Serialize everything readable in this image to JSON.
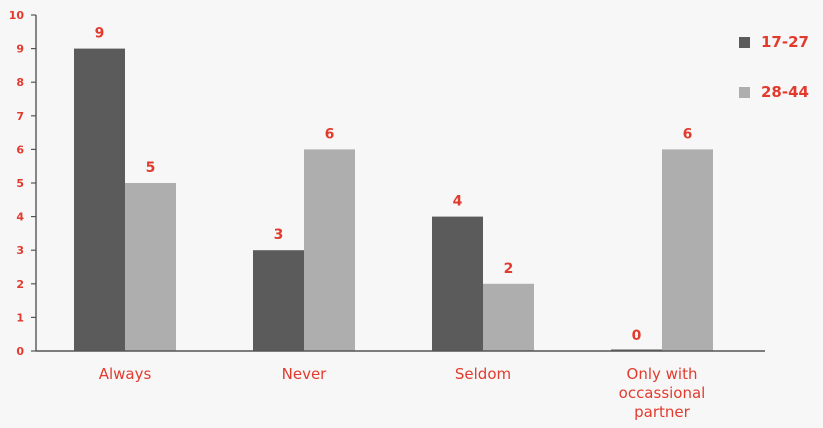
{
  "chart_data": {
    "type": "bar",
    "categories": [
      [
        "Always"
      ],
      [
        "Never"
      ],
      [
        "Seldom"
      ],
      [
        "Only with",
        "occassional",
        "partner"
      ]
    ],
    "series": [
      {
        "name": "17-27",
        "values": [
          9,
          3,
          4,
          0
        ],
        "color": "#5b5b5b"
      },
      {
        "name": "28-44",
        "values": [
          5,
          6,
          2,
          6
        ],
        "color": "#aeaeae"
      }
    ],
    "title": "",
    "xlabel": "",
    "ylabel": "",
    "ylim": [
      0,
      10
    ],
    "yticks": [
      0,
      1,
      2,
      3,
      4,
      5,
      6,
      7,
      8,
      9,
      10
    ],
    "grid": false,
    "legend_position": "top-right",
    "label_color": "#e23b2e"
  }
}
